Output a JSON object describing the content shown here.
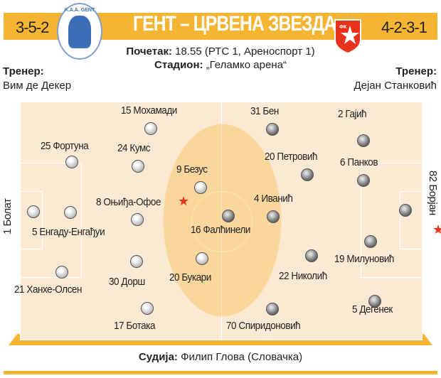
{
  "header": {
    "title": "ГЕНТ – ЦРВЕНА ЗВЕЗДА",
    "home_formation": "3-5-2",
    "away_formation": "4-2-3-1",
    "home_logo_text": "K.A.A. GENT",
    "away_logo_text": "ФК"
  },
  "info": {
    "kickoff_label": "Почетак:",
    "kickoff_value": "18.55 (РТС 1, Ареноспорт 1)",
    "stadium_label": "Стадион:",
    "stadium_value": "„Геламко арена“"
  },
  "coaches": {
    "home_label": "Тренер:",
    "home_name": "Вим де Декер",
    "away_label": "Тренер:",
    "away_name": "Дејан Станковић"
  },
  "home_players": [
    "1 Болат",
    "5 Енгаду-Енгађуи",
    "25 Фортуна",
    "15 Мохамади",
    "24 Кумс",
    "9 Безус",
    "8 Оњиђа-Офое",
    "21 Ханхе-Олсен",
    "30 Дорш",
    "20 Букари",
    "17 Ботака"
  ],
  "away_players": [
    "82 Борјан",
    "2 Гајић",
    "6 Панков",
    "19 Милуновић",
    "5 Дегенек",
    "31 Бен",
    "20 Петровић",
    "4 Иванић",
    "16 Фалћинели",
    "22 Николић",
    "70 Спиридоновић"
  ],
  "referee": {
    "label": "Судија:",
    "value": "Филип Глова (Словачка)"
  },
  "colors": {
    "accent": "#f5b533",
    "pitch": "#fbe9d4",
    "star": "#e8321c"
  }
}
